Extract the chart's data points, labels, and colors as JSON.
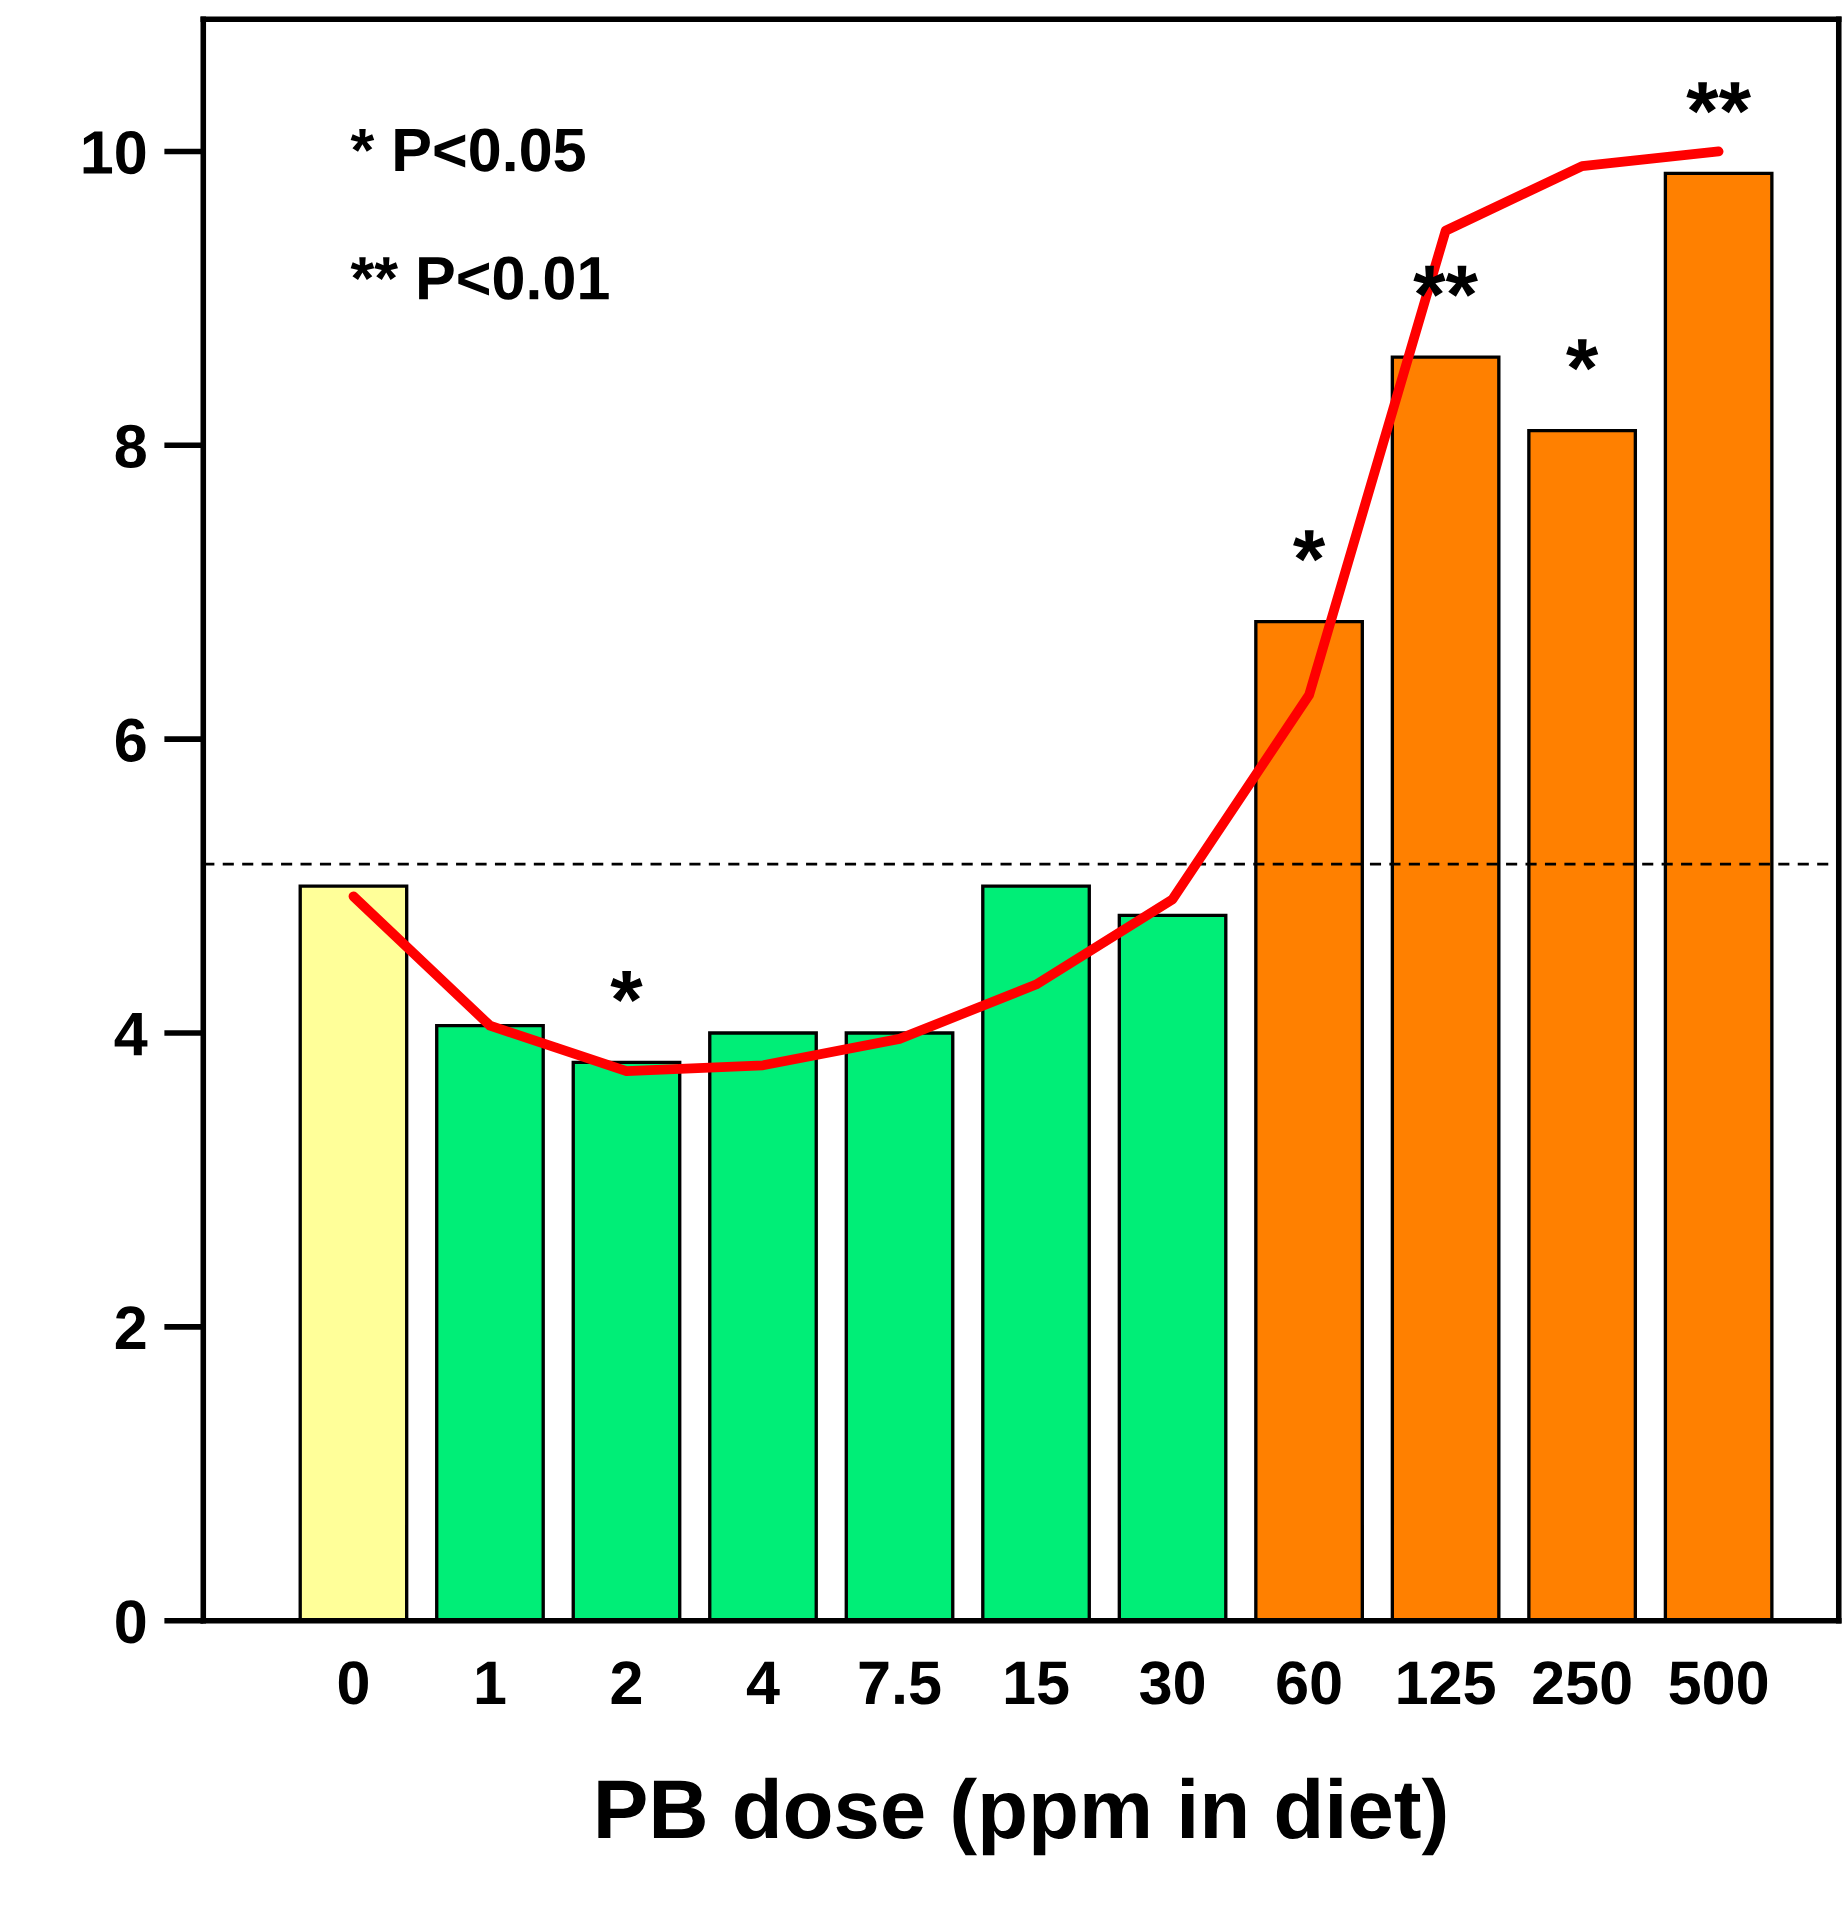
{
  "chart_data": {
    "type": "bar",
    "xlabel": "PB dose (ppm in diet)",
    "categories": [
      "0",
      "1",
      "2",
      "4",
      "7.5",
      "15",
      "30",
      "60",
      "125",
      "250",
      "500"
    ],
    "series": [
      {
        "colors": [
          "#ffff99",
          "#00ee77",
          "#00ee77",
          "#00ee77",
          "#00ee77",
          "#00ee77",
          "#00ee77",
          "#ff8000",
          "#ff8000",
          "#ff8000",
          "#ff8000"
        ],
        "values": [
          5.0,
          4.05,
          3.8,
          4.0,
          4.0,
          5.0,
          4.8,
          6.8,
          8.6,
          8.1,
          9.85
        ]
      },
      {
        "type": "line",
        "color": "#ff0000",
        "values": [
          4.93,
          4.05,
          3.74,
          3.78,
          3.96,
          4.33,
          4.91,
          6.3,
          9.46,
          9.9,
          10.0
        ]
      }
    ],
    "ylim": [
      0,
      10.9
    ],
    "yticks": [
      0,
      2,
      4,
      6,
      8,
      10
    ],
    "ref_lines": [
      {
        "axis": "y",
        "value": 5.15,
        "color": "#000000",
        "line_style": "dashed"
      }
    ],
    "annotations": [
      "* P<0.05",
      "** P<0.01",
      {
        "text": "*",
        "x": "2",
        "y": 3.8
      },
      {
        "text": "*",
        "x": "60",
        "y": 6.8
      },
      {
        "text": "**",
        "x": "125",
        "y": 8.6
      },
      {
        "text": "*",
        "x": "250",
        "y": 8.1
      },
      {
        "text": "**",
        "x": "500",
        "y": 9.85
      }
    ],
    "grid": false,
    "legend": false
  }
}
